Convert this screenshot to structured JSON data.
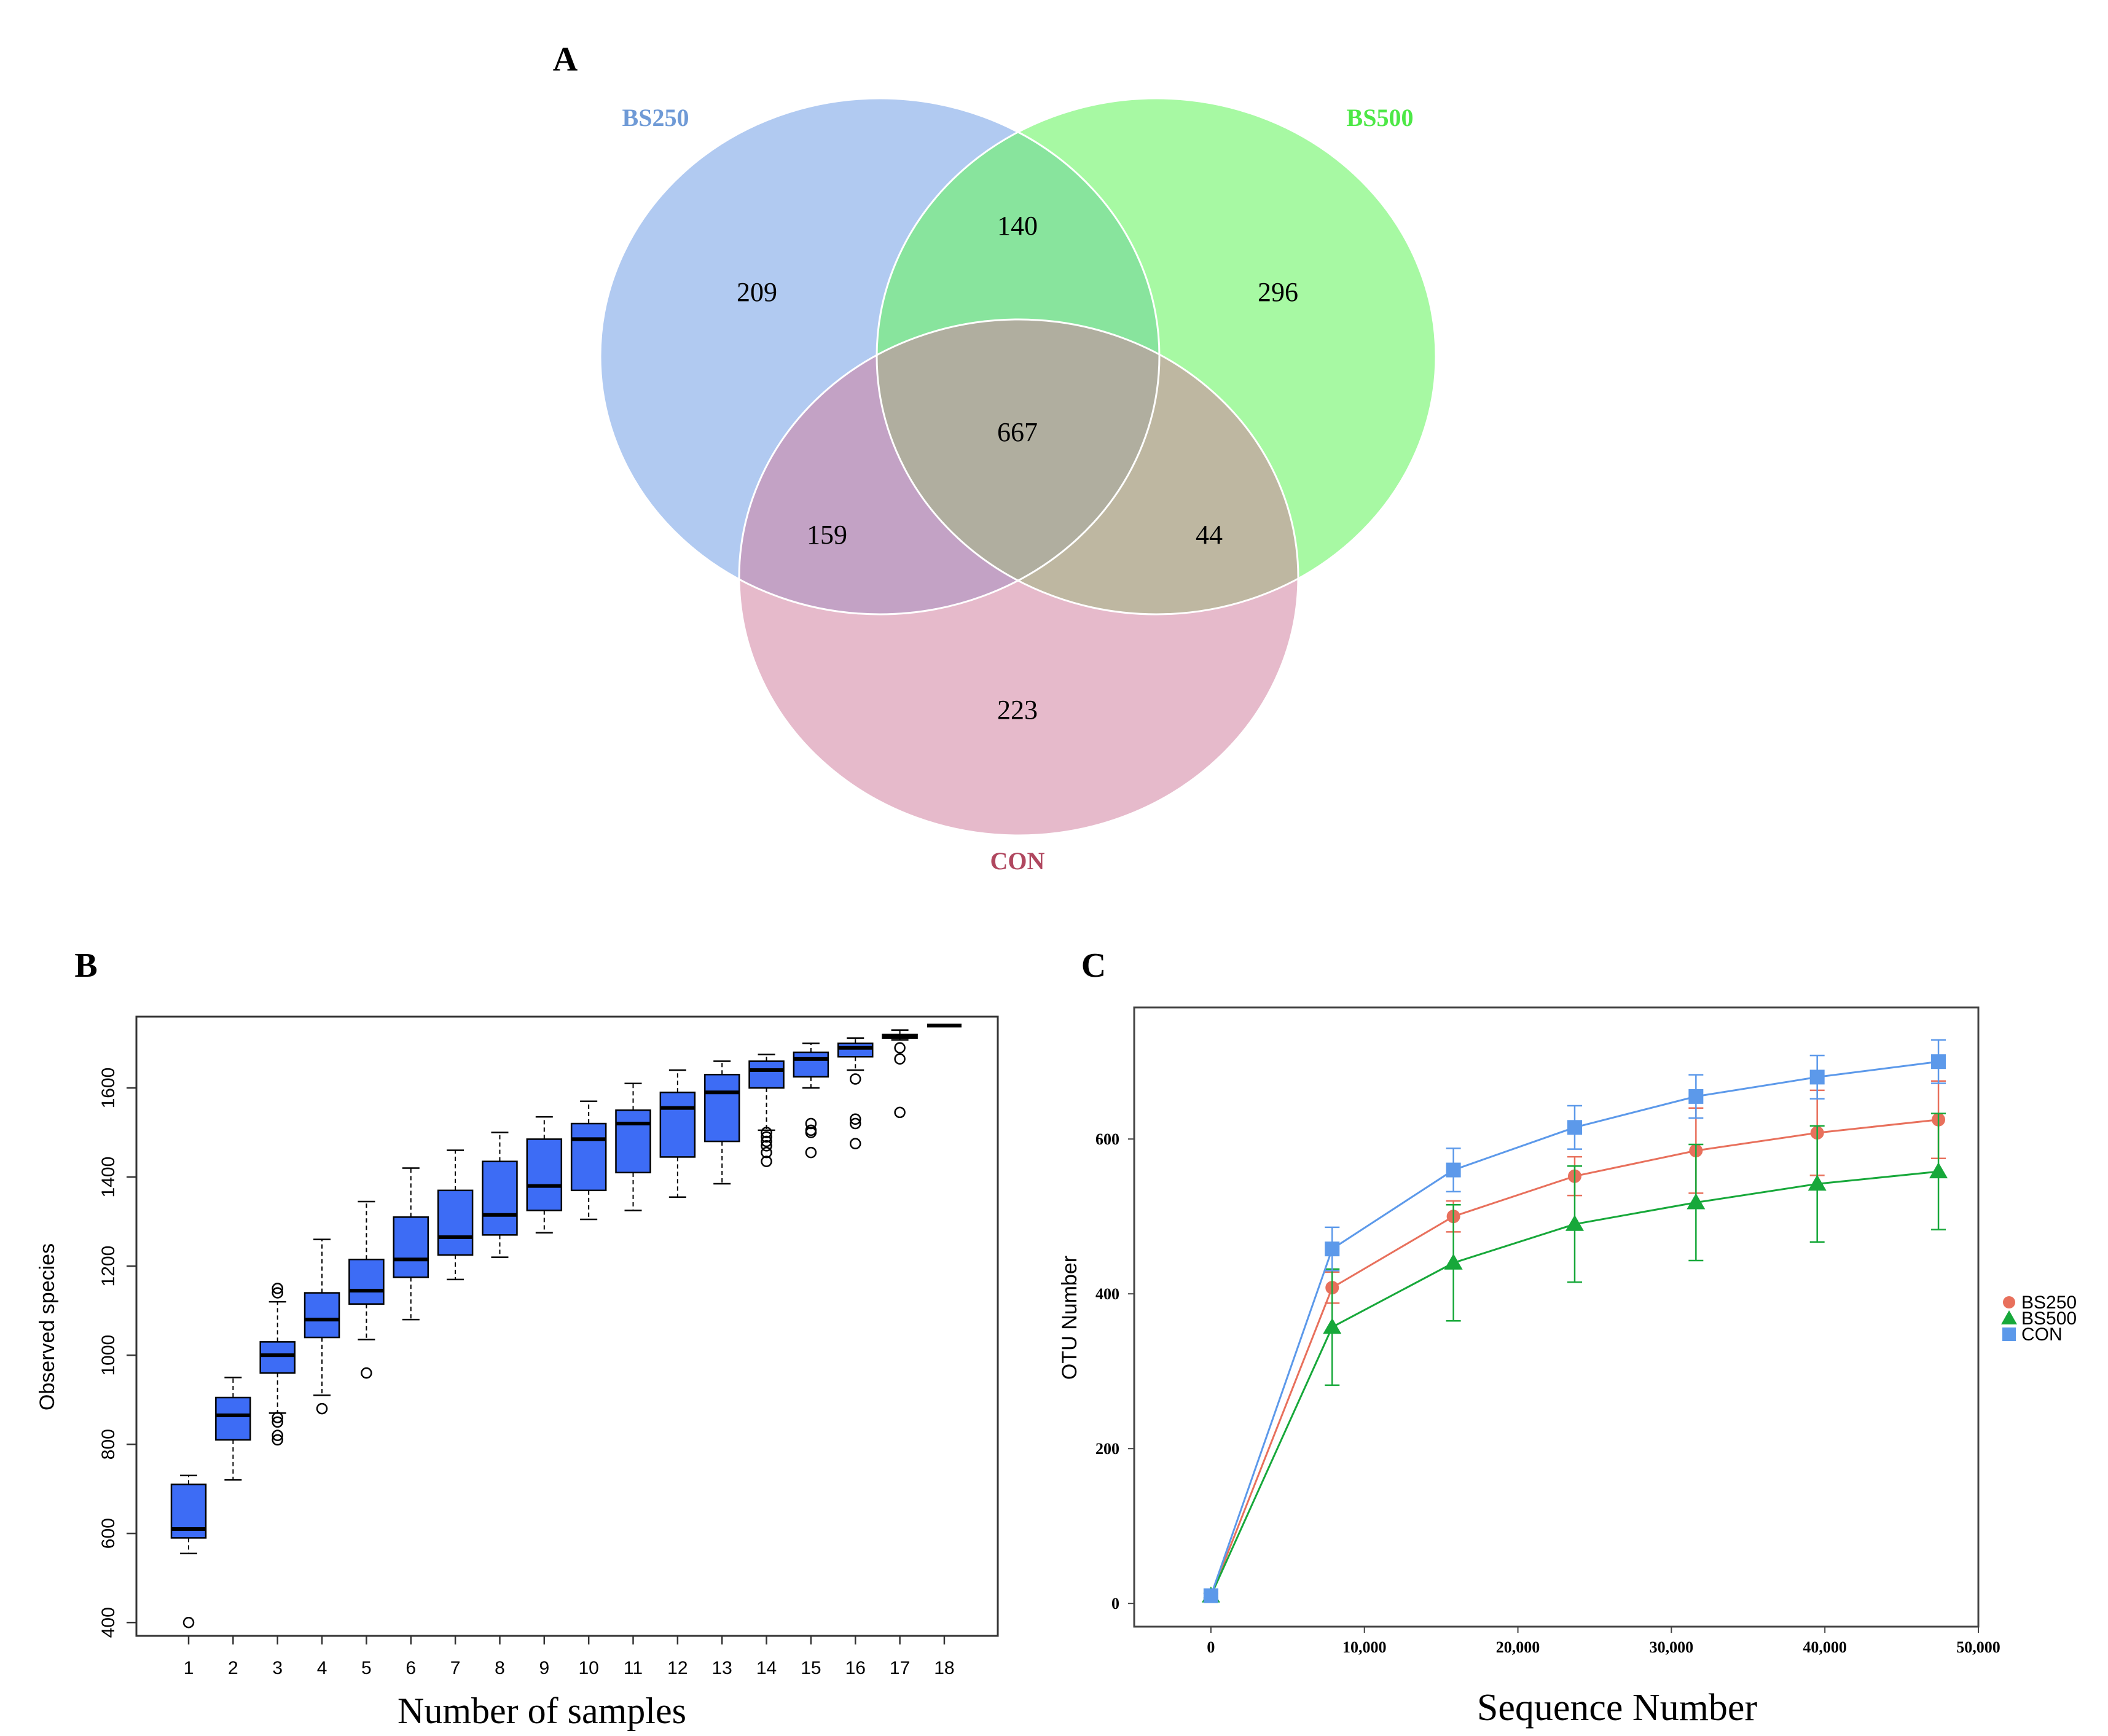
{
  "panels": {
    "a": {
      "label": "A"
    },
    "b": {
      "label": "B"
    },
    "c": {
      "label": "C"
    }
  },
  "chart_data": [
    {
      "type": "venn",
      "panel": "A",
      "sets": [
        {
          "name": "BS250",
          "color": "#a9c4ef",
          "label_color": "#6f9ad6"
        },
        {
          "name": "BS500",
          "color": "#6df566",
          "label_color": "#4de846"
        },
        {
          "name": "CON",
          "color": "#d282a1",
          "label_color": "#b0475f"
        }
      ],
      "regions": {
        "BS250_only": "209",
        "BS500_only": "296",
        "CON_only": "223",
        "BS250_BS500": "140",
        "BS250_CON": "159",
        "BS500_CON": "44",
        "all": "667"
      }
    },
    {
      "type": "boxplot",
      "panel": "B",
      "xlabel": "Number of samples",
      "ylabel": "Observed species",
      "ylim": [
        370,
        1760
      ],
      "yticks": [
        400,
        600,
        800,
        1000,
        1200,
        1400,
        1600
      ],
      "box_color": "#3d6cf5",
      "categories": [
        "1",
        "2",
        "3",
        "4",
        "5",
        "6",
        "7",
        "8",
        "9",
        "10",
        "11",
        "12",
        "13",
        "14",
        "15",
        "16",
        "17",
        "18"
      ],
      "boxes": [
        {
          "min": 555,
          "q1": 590,
          "median": 610,
          "q3": 710,
          "max": 730,
          "outliers": [
            400
          ]
        },
        {
          "min": 720,
          "q1": 810,
          "median": 865,
          "q3": 905,
          "max": 950,
          "outliers": []
        },
        {
          "min": 870,
          "q1": 960,
          "median": 1000,
          "q3": 1030,
          "max": 1120,
          "outliers": [
            810,
            820,
            850,
            860,
            1140,
            1150
          ]
        },
        {
          "min": 910,
          "q1": 1040,
          "median": 1080,
          "q3": 1140,
          "max": 1260,
          "outliers": [
            880
          ]
        },
        {
          "min": 1035,
          "q1": 1115,
          "median": 1145,
          "q3": 1215,
          "max": 1345,
          "outliers": [
            960
          ]
        },
        {
          "min": 1080,
          "q1": 1175,
          "median": 1215,
          "q3": 1310,
          "max": 1420,
          "outliers": []
        },
        {
          "min": 1170,
          "q1": 1225,
          "median": 1265,
          "q3": 1370,
          "max": 1460,
          "outliers": []
        },
        {
          "min": 1220,
          "q1": 1270,
          "median": 1315,
          "q3": 1435,
          "max": 1500,
          "outliers": []
        },
        {
          "min": 1275,
          "q1": 1325,
          "median": 1380,
          "q3": 1485,
          "max": 1535,
          "outliers": []
        },
        {
          "min": 1305,
          "q1": 1370,
          "median": 1485,
          "q3": 1520,
          "max": 1570,
          "outliers": []
        },
        {
          "min": 1325,
          "q1": 1410,
          "median": 1520,
          "q3": 1550,
          "max": 1610,
          "outliers": []
        },
        {
          "min": 1355,
          "q1": 1445,
          "median": 1555,
          "q3": 1590,
          "max": 1640,
          "outliers": []
        },
        {
          "min": 1385,
          "q1": 1480,
          "median": 1590,
          "q3": 1630,
          "max": 1660,
          "outliers": []
        },
        {
          "min": 1505,
          "q1": 1600,
          "median": 1640,
          "q3": 1660,
          "max": 1675,
          "outliers": [
            1435,
            1455,
            1470,
            1480,
            1490,
            1500
          ]
        },
        {
          "min": 1600,
          "q1": 1625,
          "median": 1665,
          "q3": 1680,
          "max": 1700,
          "outliers": [
            1455,
            1500,
            1505,
            1520
          ]
        },
        {
          "min": 1640,
          "q1": 1670,
          "median": 1690,
          "q3": 1700,
          "max": 1712,
          "outliers": [
            1475,
            1520,
            1530,
            1620
          ]
        },
        {
          "min": 1708,
          "q1": 1712,
          "median": 1716,
          "q3": 1720,
          "max": 1730,
          "outliers": [
            1545,
            1665,
            1690
          ]
        },
        {
          "min": 1740,
          "q1": 1740,
          "median": 1740,
          "q3": 1740,
          "max": 1740,
          "outliers": []
        }
      ]
    },
    {
      "type": "line",
      "panel": "C",
      "xlabel": "Sequence Number",
      "ylabel": "OTU Number",
      "xlim": [
        -5000,
        50000
      ],
      "ylim": [
        -30,
        770
      ],
      "xticks": [
        0,
        10000,
        20000,
        30000,
        40000,
        50000
      ],
      "xtick_labels": [
        "0",
        "10,000",
        "20,000",
        "30,000",
        "40,000",
        "50,000"
      ],
      "yticks": [
        0,
        200,
        400,
        600
      ],
      "x": [
        0,
        7900,
        15800,
        23700,
        31600,
        39500,
        47400
      ],
      "series": [
        {
          "name": "BS250",
          "marker": "circle",
          "color": "#e8705c",
          "values": [
            10,
            408,
            500,
            552,
            585,
            608,
            625
          ],
          "error": [
            3,
            20,
            20,
            25,
            55,
            55,
            50
          ]
        },
        {
          "name": "BS500",
          "marker": "triangle",
          "color": "#17a83a",
          "values": [
            10,
            357,
            440,
            490,
            518,
            542,
            558
          ],
          "error": [
            3,
            75,
            75,
            75,
            75,
            75,
            75
          ]
        },
        {
          "name": "CON",
          "marker": "square",
          "color": "#5c99ea",
          "values": [
            10,
            458,
            560,
            615,
            655,
            680,
            700
          ],
          "error": [
            3,
            28,
            28,
            28,
            28,
            28,
            28
          ]
        }
      ],
      "legend_position": "right"
    }
  ]
}
